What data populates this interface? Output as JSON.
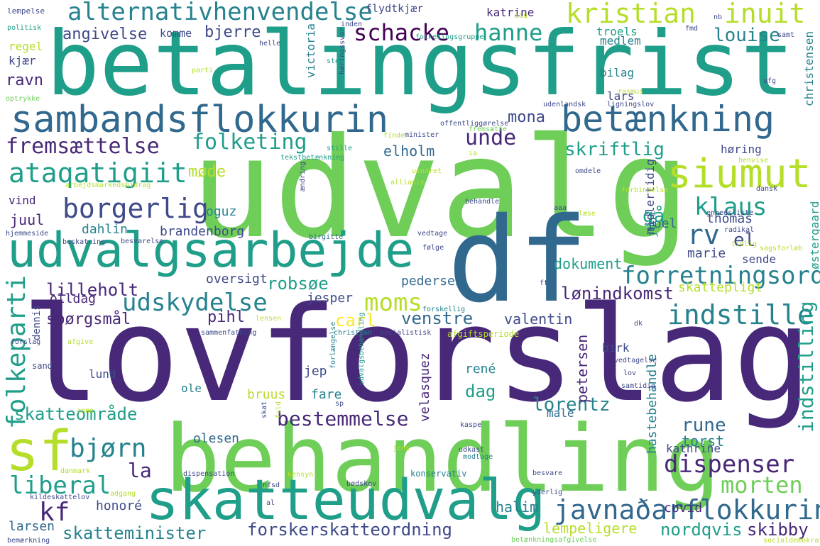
{
  "words": {
    "lovforslag": "lovforslag",
    "udvalg": "udvalg",
    "betalingsfrist": "betalingsfrist",
    "behandling": "behandling",
    "df": "df",
    "udvalgsarbejde": "udvalgsarbejde",
    "sambandsflokkurin": "sambandsflokkurin",
    "skatteudvalg": "skatteudvalg",
    "sf": "sf",
    "betaenkning": "betænkning",
    "siumut": "siumut",
    "alternativhenvendelse": "alternativhenvendelse",
    "kristian": "kristian",
    "inuit": "inuit",
    "schacke": "schacke",
    "hanne": "hanne",
    "louise": "louise",
    "angivelse": "angivelse",
    "bjerre": "bjerre",
    "komme": "komme",
    "katrine": "katrine",
    "flydtkjaer": "flydtkjær",
    "fremsaettelse": "fremsættelse",
    "folketing": "folketing",
    "unde": "unde",
    "mona": "mona",
    "skriftlig": "skriftlig",
    "elholm": "elholm",
    "ataqatigiit": "ataqatigiit",
    "mode": "møde",
    "borgerlig": "borgerlig",
    "klaus": "klaus",
    "rv": "rv",
    "el": "el",
    "forretningsorden": "forretningsorden",
    "folkeparti": "folkeparti",
    "udskydelse": "udskydelse",
    "moms": "moms",
    "indstille": "indstille",
    "robsoe": "robsøe",
    "lonindkomst": "lønindkomst",
    "lilleholt": "lilleholt",
    "spoergsmaal": "spørgsmål",
    "pihl": "pihl",
    "carl": "carl",
    "venstre": "venstre",
    "valentin": "valentin",
    "skattepligt": "skattepligt",
    "juul": "juul",
    "dahlin": "dahlin",
    "brandenborg": "brandenborg",
    "oguz": "oguz",
    "ravn": "ravn",
    "regel": "regel",
    "kjaer": "kjær",
    "vind": "vind",
    "bjorn": "bjørn",
    "la": "la",
    "liberal": "liberal",
    "kf": "kf",
    "skatteomraade": "skatteområde",
    "bestemmelse": "bestemmelse",
    "lorentz": "lorentz",
    "dispenser": "dispenser",
    "morten": "morten",
    "javnadarflokkurin": "javnaðarflokkurin",
    "forskerskatteordning": "forskerskatteordning",
    "nordqvis": "nordqvis",
    "skibby": "skibby",
    "skatteminister": "skatteminister",
    "lempeligere": "lempeligere",
    "honore": "honoré",
    "larsen": "larsen",
    "halim": "halim",
    "covid": "covid",
    "indstilling": "indstilling",
    "rune": "rune",
    "torst": "torst",
    "kathrine": "kathrine",
    "hastebehandle": "hastebehandle",
    "dag": "dag",
    "rene": "rené",
    "bruus": "bruus",
    "fare": "fare",
    "ole": "ole",
    "olesen": "olesen",
    "jep": "jep",
    "velasquez": "velasquez",
    "petersen": "petersen",
    "birk": "birk",
    "male": "male",
    "jesper": "jesper",
    "oversigt": "oversigt",
    "olldag": "olldag",
    "pedersen": "pedersen",
    "dokument": "dokument",
    "marie": "marie",
    "sende": "sende",
    "juni": "juni",
    "thomas": "thomas",
    "joel": "joel",
    "gaa": "gå",
    "hoering": "høring",
    "bilag": "bilag",
    "lars": "lars",
    "troels": "troels",
    "medlem": "medlem",
    "christensen": "christensen",
    "oestergaard": "østergaard",
    "victoria": "victoria",
    "midlertidig": "midlertidig",
    "lund": "lund",
    "dennis": "dennis",
    "sand": "sand",
    "lempelse": "lempelse",
    "politisk": "politisk",
    "optrykke": "optrykke",
    "hjemmeside": "hjemmeside",
    "beskatning": "beskatning",
    "besvarelse": "besvarelse",
    "arbejdsmarkedsbidrag": "arbejdsmarkedsbidrag",
    "tekstbetaenkning": "tekstbetænkning",
    "stille": "stille",
    "alliance": "alliance",
    "uaendret": "uændret",
    "behandle": "behandle",
    "forbindelse": "forbindelse",
    "dansk": "dansk",
    "enhedsliste": "enhedsliste",
    "radikal": "radikal",
    "tidlig": "tidlig",
    "sagsforloeb": "sagsforløb",
    "vedtage": "vedtage",
    "foelge": "følge",
    "birgitte": "birgitte",
    "forskellig": "forskellig",
    "christian": "christian",
    "socialistisk": "socialistisk",
    "afgiftsperiode": "afgiftsperiode",
    "sammenfatning": "sammenfatning",
    "forslag": "forslag",
    "afgive": "afgive",
    "forlaengelse": "forlængelse",
    "udvalgsbehandling": "udvalgsbehandling",
    "vedtagelse": "vedtagelse",
    "samtidig": "samtidig",
    "lov": "lov",
    "anne": "anne",
    "kaspe": "kaspe",
    "udkast": "udkast",
    "modtage": "modtage",
    "konservativ": "konservativ",
    "besvare": "besvare",
    "ydeerlig": "yderlig",
    "dispensation": "dispensation",
    "hensyn": "hensyn",
    "baedskov": "bødskov",
    "danmark": "danmark",
    "adgang": "adgang",
    "kildeskattelov": "kildeskattelov",
    "bemaerkning": "bemærkning",
    "betaenkningsafgivelse": "betænkningsafgivelse",
    "socialdemokrati": "socialdemokrati",
    "offentliggoerelse": "offentliggørelse",
    "minister": "minister",
    "fremsaette": "fremsætte",
    "udenlandsk": "udenlandsk",
    "ligningslov": "ligningslov",
    "rasmus": "rasmus",
    "folketingsgruppe": "folketingsgruppe",
    "helle": "helle",
    "inden": "inden",
    "fmd": "fmd",
    "samt": "samt",
    "sted": "sted",
    "parti": "parti",
    "hoeringssvar": "høringssvar",
    "ufg": "ufg",
    "finde": "finde",
    "henvise": "henvise",
    "omdele": "omdele",
    "aendring": "ændring",
    "laese": "læse",
    "siu": "siu",
    "nb": "nb",
    "ia": "ia",
    "aaa": "aaa",
    "ft": "ft",
    "dk": "dk",
    "sp": "sp",
    "fuld": "fuld",
    "jens": "jens",
    "skat": "skat",
    "nfsd": "nfsd",
    "al": "al",
    "lensen": "lensen"
  },
  "colors": {
    "darkPurple": "#440154",
    "indigo": "#482878",
    "slateBlue": "#3e4a89",
    "steelBlue": "#31688e",
    "teal": "#26828e",
    "tealGreen": "#1f9e89",
    "green": "#35b779",
    "lightGreen": "#6ece58",
    "lime": "#b5de2b",
    "yellow": "#fde725"
  }
}
